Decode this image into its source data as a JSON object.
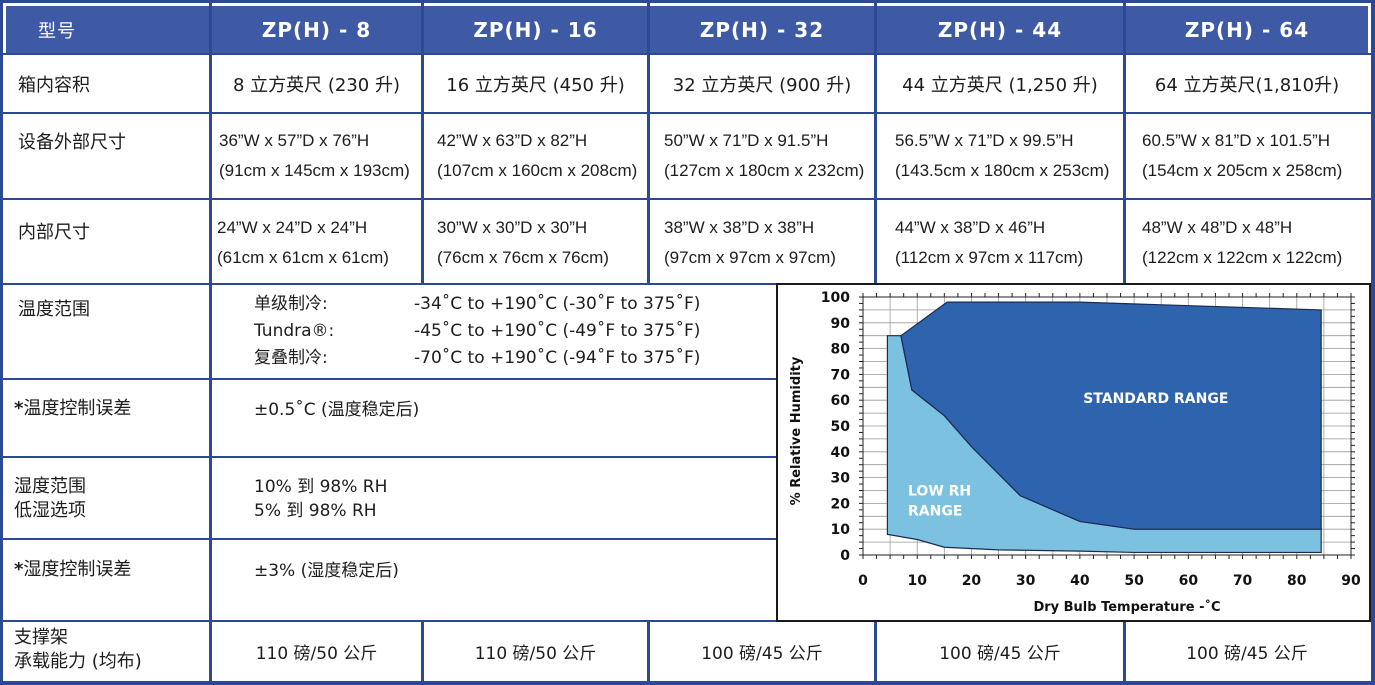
{
  "header": {
    "model_label": "型号",
    "models": [
      "ZP(H) - 8",
      "ZP(H) - 16",
      "ZP(H) - 32",
      "ZP(H) - 44",
      "ZP(H) - 64"
    ]
  },
  "rows": {
    "capacity": {
      "label": "箱内容积",
      "values": [
        "8 立方英尺 (230 升)",
        "16 立方英尺 (450 升)",
        "32 立方英尺 (900 升)",
        "44 立方英尺 (1,250 升)",
        "64 立方英尺(1,810升)"
      ]
    },
    "exterior": {
      "label": "设备外部尺寸",
      "values": [
        [
          "36”W x 57”D x 76”H",
          "(91cm x 145cm x 193cm)"
        ],
        [
          "42”W x 63”D x 82”H",
          "(107cm x 160cm x 208cm)"
        ],
        [
          "50”W x 71”D x 91.5”H",
          "(127cm x 180cm x 232cm)"
        ],
        [
          "56.5”W x 71”D x 99.5”H",
          "(143.5cm x 180cm x 253cm)"
        ],
        [
          "60.5”W x 81”D x 101.5”H",
          "(154cm x 205cm x 258cm)"
        ]
      ]
    },
    "interior": {
      "label": "内部尺寸",
      "values": [
        [
          "24”W x 24”D x 24”H",
          "(61cm x 61cm x 61cm)"
        ],
        [
          "30”W x 30”D x 30”H",
          "(76cm x 76cm x 76cm)"
        ],
        [
          "38”W x 38”D x 38”H",
          "(97cm x 97cm x 97cm)"
        ],
        [
          "44”W x 38”D x 46”H",
          "(112cm x 97cm x 117cm)"
        ],
        [
          "48”W x 48”D x 48”H",
          "(122cm x 122cm x 122cm)"
        ]
      ]
    },
    "temp_range": {
      "label": "温度范围",
      "lines": [
        {
          "name": "单级制冷:",
          "range": "-34˚C to +190˚C (-30˚F to 375˚F)"
        },
        {
          "name": "Tundra®:",
          "range": "-45˚C to +190˚C (-49˚F to 375˚F)"
        },
        {
          "name": "复叠制冷:",
          "range": "-70˚C to +190˚C (-94˚F to 375˚F)"
        }
      ]
    },
    "temp_tolerance": {
      "label": "温度控制误差",
      "star": "*",
      "value": "±0.5˚C  (温度稳定后)"
    },
    "humidity_range": {
      "label_1": "湿度范围",
      "label_2": "低湿选项",
      "value_1": "10% 到 98% RH",
      "value_2": "5% 到 98% RH"
    },
    "humidity_tolerance": {
      "label": "湿度控制误差",
      "star": "*",
      "value": "±3%  (湿度稳定后)"
    },
    "shelf": {
      "label_1": "支撑架",
      "label_2": "承载能力 (均布)",
      "values": [
        "110 磅/50 公斤",
        "110 磅/50 公斤",
        "100 磅/45 公斤",
        "100 磅/45 公斤",
        "100 磅/45 公斤"
      ]
    }
  },
  "colors": {
    "brand_blue": "#3e5aa5",
    "border_blue": "#2c4a93",
    "standard_range": "#2e63ad",
    "low_rh_range": "#7cc1df"
  },
  "chart_data": {
    "type": "area",
    "xlabel": "Dry Bulb Temperature -˚C",
    "ylabel": "% Relative Humidity",
    "xlim": [
      0,
      90
    ],
    "ylim": [
      0,
      100
    ],
    "xticks": [
      0,
      10,
      20,
      30,
      40,
      50,
      60,
      70,
      80,
      90
    ],
    "yticks": [
      0,
      10,
      20,
      30,
      40,
      50,
      60,
      70,
      80,
      90,
      100
    ],
    "grid": true,
    "series": [
      {
        "name": "LOW RH RANGE",
        "label_lines": [
          "LOW RH",
          "RANGE"
        ],
        "points": [
          [
            4.5,
            8
          ],
          [
            10,
            6
          ],
          [
            15,
            3
          ],
          [
            25,
            2
          ],
          [
            40,
            1.5
          ],
          [
            50,
            1
          ],
          [
            84.5,
            1
          ],
          [
            84.5,
            10
          ],
          [
            50,
            10
          ],
          [
            40,
            13
          ],
          [
            29,
            23
          ],
          [
            20,
            42
          ],
          [
            15,
            54
          ],
          [
            9,
            64
          ],
          [
            7,
            85
          ],
          [
            4.5,
            85
          ]
        ]
      },
      {
        "name": "STANDARD RANGE",
        "label_lines": [
          "STANDARD RANGE"
        ],
        "points": [
          [
            7,
            85
          ],
          [
            15.5,
            98
          ],
          [
            40,
            98
          ],
          [
            84.5,
            95
          ],
          [
            84.5,
            10
          ],
          [
            50,
            10
          ],
          [
            40,
            13
          ],
          [
            29,
            23
          ],
          [
            20,
            42
          ],
          [
            15,
            54
          ],
          [
            9,
            64
          ]
        ]
      }
    ]
  }
}
